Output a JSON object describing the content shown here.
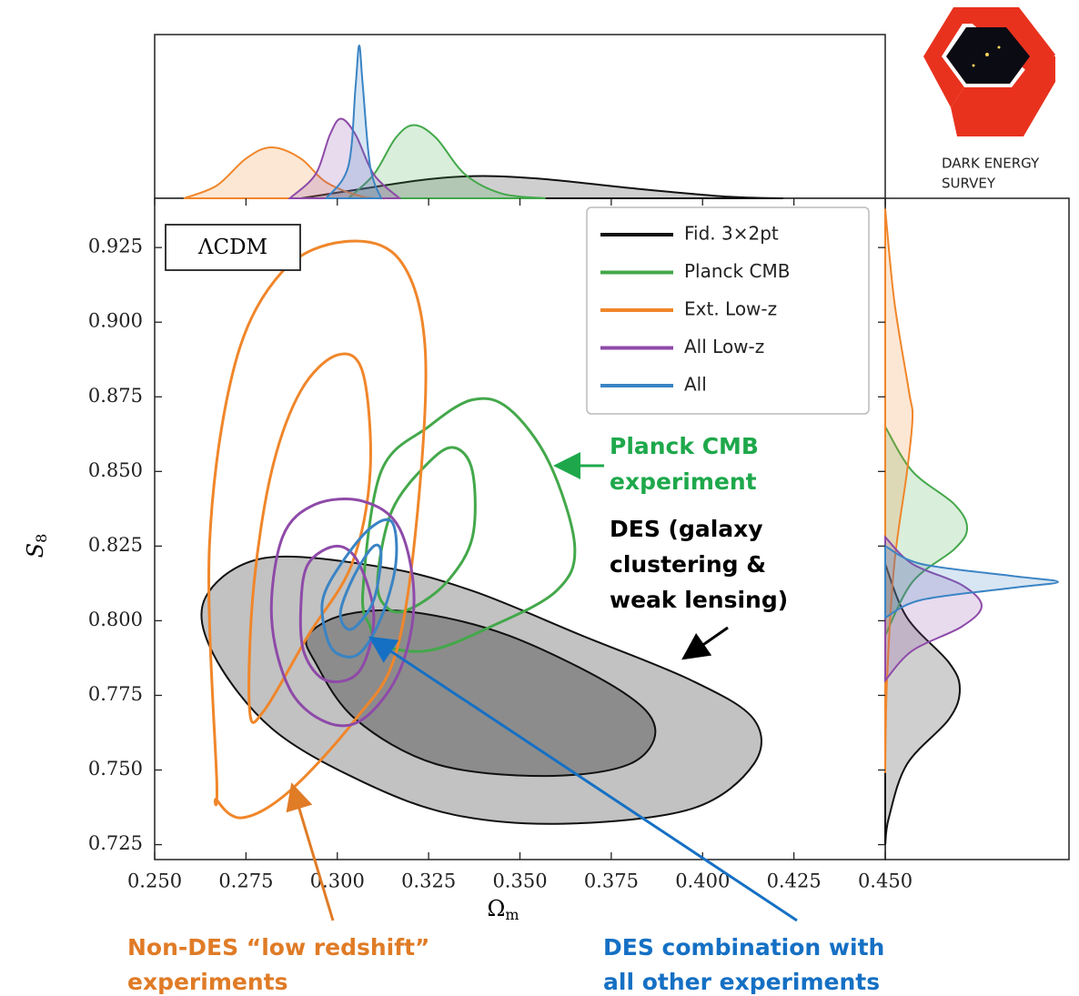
{
  "chart_data": {
    "type": "contour",
    "xlabel": {
      "symbol": "Ω",
      "subscript": "m"
    },
    "ylabel": {
      "symbol": "S",
      "subscript": "8"
    },
    "model_label": "ΛCDM",
    "xlim": [
      0.25,
      0.45
    ],
    "ylim": [
      0.72,
      0.9415
    ],
    "xticks": [
      {
        "value": 0.25,
        "label": "0.250"
      },
      0.275,
      {
        "value": 0.3,
        "label": "0.300"
      },
      0.325,
      {
        "value": 0.35,
        "label": "0.350"
      },
      0.375,
      {
        "value": 0.4,
        "label": "0.400"
      },
      0.425,
      {
        "value": 0.45,
        "label": "0.450"
      }
    ],
    "yticks": [
      0.725,
      {
        "value": 0.75,
        "label": "0.750"
      },
      0.775,
      {
        "value": 0.8,
        "label": "0.800"
      },
      0.825,
      {
        "value": 0.85,
        "label": "0.850"
      },
      0.875,
      {
        "value": 0.9,
        "label": "0.900"
      },
      0.925
    ],
    "legend": "upper right",
    "series": [
      {
        "name": "Fid. 3×2pt",
        "color": "#111111",
        "fill": [
          "#c2c2c2",
          "#8c8c8c"
        ],
        "contours": [
          {
            "x": [
              0.264,
              0.28,
              0.312,
              0.337,
              0.367,
              0.397,
              0.414,
              0.414,
              0.397,
              0.362,
              0.332,
              0.307,
              0.282,
              0.266
            ],
            "values": [
              0.808,
              0.821,
              0.818,
              0.81,
              0.795,
              0.78,
              0.767,
              0.752,
              0.737,
              0.732,
              0.735,
              0.746,
              0.764,
              0.789
            ]
          },
          {
            "x": [
              0.292,
              0.302,
              0.32,
              0.347,
              0.377,
              0.387,
              0.38,
              0.357,
              0.327,
              0.305,
              0.294
            ],
            "values": [
              0.795,
              0.802,
              0.803,
              0.795,
              0.777,
              0.764,
              0.752,
              0.748,
              0.752,
              0.767,
              0.786
            ]
          }
        ],
        "marginal_x": {
          "x": [
            0.29,
            0.307,
            0.325,
            0.34,
            0.357,
            0.382,
            0.407,
            0.422
          ],
          "values": [
            0,
            0.06,
            0.12,
            0.14,
            0.12,
            0.06,
            0.01,
            0
          ]
        },
        "marginal_y": {
          "x": [
            0.819,
            0.801,
            0.786,
            0.777,
            0.767,
            0.752,
            0.734,
            0.725
          ],
          "values": [
            0,
            0.12,
            0.35,
            0.41,
            0.35,
            0.12,
            0.02,
            0
          ]
        }
      },
      {
        "name": "Planck CMB",
        "color": "#43a84a",
        "contours": [
          {
            "x": [
              0.307,
              0.312,
              0.325,
              0.337,
              0.347,
              0.358,
              0.365,
              0.36,
              0.342,
              0.325,
              0.312,
              0.309
            ],
            "values": [
              0.81,
              0.85,
              0.865,
              0.874,
              0.871,
              0.853,
              0.825,
              0.81,
              0.798,
              0.79,
              0.792,
              0.798
            ]
          },
          {
            "x": [
              0.311,
              0.315,
              0.325,
              0.332,
              0.337,
              0.337,
              0.33,
              0.32,
              0.314
            ],
            "values": [
              0.813,
              0.837,
              0.853,
              0.858,
              0.85,
              0.828,
              0.813,
              0.804,
              0.804
            ]
          }
        ],
        "marginal_x": {
          "x": [
            0.303,
            0.31,
            0.316,
            0.321,
            0.327,
            0.335,
            0.345,
            0.357
          ],
          "values": [
            0,
            0.15,
            0.38,
            0.46,
            0.38,
            0.15,
            0.03,
            0
          ]
        },
        "marginal_y": {
          "x": [
            0.865,
            0.85,
            0.839,
            0.831,
            0.824,
            0.813,
            0.795
          ],
          "values": [
            0,
            0.15,
            0.38,
            0.45,
            0.38,
            0.15,
            0
          ]
        }
      },
      {
        "name": "Ext. Low-z",
        "color": "#f0862a",
        "contours": [
          {
            "x": [
              0.267,
              0.265,
              0.272,
              0.285,
              0.302,
              0.317,
              0.324,
              0.322,
              0.316,
              0.305,
              0.287,
              0.274,
              0.267
            ],
            "values": [
              0.746,
              0.825,
              0.886,
              0.917,
              0.927,
              0.921,
              0.892,
              0.837,
              0.789,
              0.767,
              0.743,
              0.734,
              0.74
            ]
          },
          {
            "x": [
              0.276,
              0.277,
              0.282,
              0.29,
              0.3,
              0.307,
              0.309,
              0.304,
              0.292,
              0.28
            ],
            "values": [
              0.77,
              0.81,
              0.85,
              0.877,
              0.889,
              0.883,
              0.85,
              0.819,
              0.795,
              0.77
            ]
          }
        ],
        "marginal_x": {
          "x": [
            0.258,
            0.267,
            0.275,
            0.282,
            0.29,
            0.297,
            0.307,
            0.315
          ],
          "values": [
            0,
            0.08,
            0.25,
            0.32,
            0.25,
            0.1,
            0.01,
            0
          ]
        },
        "marginal_y": {
          "x": [
            0.938,
            0.907,
            0.877,
            0.868,
            0.85,
            0.819,
            0.78,
            0.749
          ],
          "values": [
            0,
            0.05,
            0.13,
            0.15,
            0.12,
            0.05,
            0.01,
            0
          ]
        }
      },
      {
        "name": "All Low-z",
        "color": "#8e4aa8",
        "contours": [
          {
            "x": [
              0.282,
              0.285,
              0.294,
              0.307,
              0.317,
              0.321,
              0.317,
              0.307,
              0.297,
              0.287
            ],
            "values": [
              0.801,
              0.828,
              0.839,
              0.84,
              0.831,
              0.807,
              0.783,
              0.767,
              0.766,
              0.777
            ]
          },
          {
            "x": [
              0.29,
              0.292,
              0.3,
              0.306,
              0.31,
              0.306,
              0.297,
              0.291
            ],
            "values": [
              0.804,
              0.819,
              0.825,
              0.819,
              0.801,
              0.783,
              0.78,
              0.789
            ]
          }
        ],
        "marginal_x": {
          "x": [
            0.287,
            0.294,
            0.298,
            0.301,
            0.305,
            0.31,
            0.317
          ],
          "values": [
            0,
            0.15,
            0.4,
            0.5,
            0.4,
            0.15,
            0
          ]
        },
        "marginal_y": {
          "x": [
            0.828,
            0.819,
            0.812,
            0.805,
            0.798,
            0.79,
            0.78
          ],
          "values": [
            0,
            0.15,
            0.42,
            0.53,
            0.42,
            0.15,
            0
          ]
        }
      },
      {
        "name": "All",
        "color": "#3a84c4",
        "contours": [
          {
            "x": [
              0.296,
              0.301,
              0.309,
              0.315,
              0.316,
              0.312,
              0.306,
              0.3,
              0.297
            ],
            "values": [
              0.807,
              0.819,
              0.831,
              0.833,
              0.819,
              0.801,
              0.789,
              0.789,
              0.795
            ]
          },
          {
            "x": [
              0.301,
              0.305,
              0.31,
              0.312,
              0.31,
              0.305,
              0.302
            ],
            "values": [
              0.804,
              0.816,
              0.825,
              0.822,
              0.807,
              0.798,
              0.798
            ]
          }
        ],
        "marginal_x": {
          "x": [
            0.297,
            0.303,
            0.305,
            0.306,
            0.307,
            0.309,
            0.312
          ],
          "values": [
            0,
            0.2,
            0.7,
            0.96,
            0.7,
            0.2,
            0
          ]
        },
        "marginal_y": {
          "x": [
            0.825,
            0.819,
            0.815,
            0.813,
            0.811,
            0.807,
            0.801
          ],
          "values": [
            0,
            0.2,
            0.7,
            0.95,
            0.7,
            0.2,
            0
          ]
        }
      }
    ],
    "annotations": [
      {
        "lines": [
          "Planck CMB",
          "experiment"
        ],
        "color": "#1ea84b"
      },
      {
        "lines": [
          "DES (galaxy",
          "clustering &",
          "weak lensing)"
        ],
        "color": "#000000"
      },
      {
        "lines": [
          "Non-DES “low redshift”",
          "experiments"
        ],
        "color": "#e07b26"
      },
      {
        "lines": [
          "DES combination with",
          "all other experiments"
        ],
        "color": "#1570c4"
      }
    ]
  },
  "logo": {
    "lines": [
      "DARK ENERGY",
      "SURVEY"
    ]
  }
}
